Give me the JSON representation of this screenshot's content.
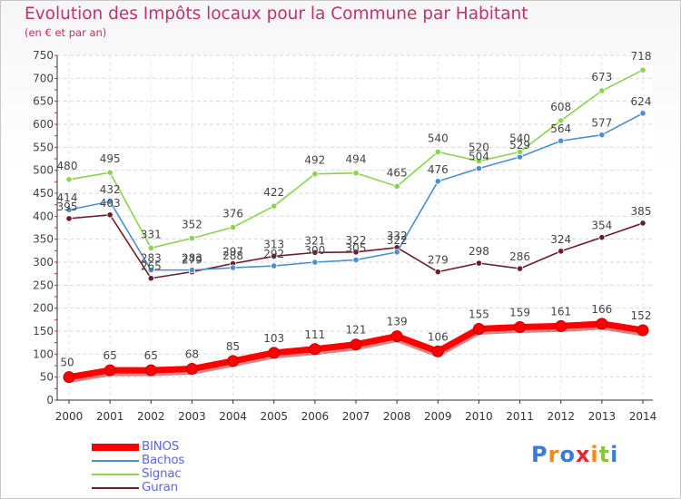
{
  "title": "Evolution des Impôts locaux pour la Commune par Habitant",
  "subtitle": "(en € et par an)",
  "chart_data": {
    "type": "line",
    "title": "Evolution des Impôts locaux pour la Commune par Habitant",
    "subtitle": "(en € et par an)",
    "xlabel": "",
    "ylabel": "",
    "x": [
      "2000",
      "2001",
      "2002",
      "2003",
      "2004",
      "2005",
      "2006",
      "2007",
      "2008",
      "2009",
      "2010",
      "2011",
      "2012",
      "2013",
      "2014"
    ],
    "ylim": [
      0,
      750
    ],
    "yticks": [
      0,
      50,
      100,
      150,
      200,
      250,
      300,
      350,
      400,
      450,
      500,
      550,
      600,
      650,
      700,
      750
    ],
    "grid": true,
    "legend": "bottom-left",
    "series": [
      {
        "name": "BINOS",
        "color": "#ff0000",
        "values": [
          50,
          65,
          65,
          68,
          85,
          103,
          111,
          121,
          139,
          106,
          155,
          159,
          161,
          166,
          152
        ]
      },
      {
        "name": "Bachos",
        "color": "#4a8fd0",
        "values": [
          414,
          432,
          283,
          283,
          288,
          292,
          300,
          305,
          322,
          476,
          504,
          529,
          564,
          577,
          624
        ]
      },
      {
        "name": "Signac",
        "color": "#8cd34f",
        "values": [
          480,
          495,
          331,
          352,
          376,
          422,
          492,
          494,
          465,
          540,
          520,
          540,
          608,
          673,
          718
        ]
      },
      {
        "name": "Guran",
        "color": "#6b1e2a",
        "values": [
          395,
          403,
          265,
          279,
          297,
          313,
          321,
          322,
          332,
          279,
          298,
          286,
          324,
          354,
          385
        ]
      }
    ]
  },
  "logo": {
    "letters": [
      "P",
      "r",
      "o",
      "x",
      "i",
      "t",
      "i"
    ],
    "colors": [
      "#3a7bd5",
      "#f08a1c",
      "#3a7bd5",
      "#e8262c",
      "#f08a1c",
      "#8cc63f",
      "#3a7bd5"
    ]
  }
}
